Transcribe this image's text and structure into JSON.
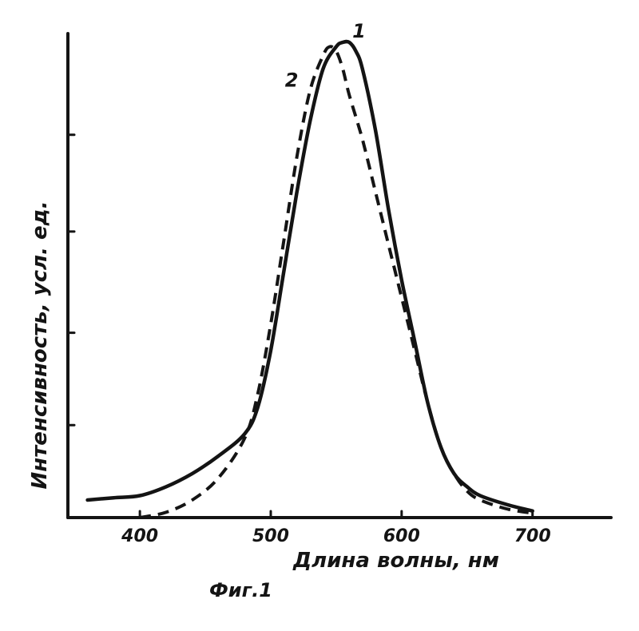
{
  "chart_data": {
    "type": "line",
    "xlabel": "Длина волны, нм",
    "ylabel": "Интенсивность, усл. ед.",
    "caption": "Фиг.1",
    "xlim": [
      345,
      760
    ],
    "ylim": [
      0,
      1.1
    ],
    "x_ticks": [
      400,
      500,
      600,
      700
    ],
    "x_tick_labels": [
      "400",
      "500",
      "600",
      "700"
    ],
    "y_ticks": [
      0.21,
      0.42,
      0.65,
      0.87
    ],
    "y_tick_labels": [],
    "series": [
      {
        "name": "1",
        "style": "solid",
        "x": [
          360,
          380,
          400,
          420,
          440,
          460,
          480,
          490,
          500,
          510,
          520,
          530,
          540,
          550,
          555,
          560,
          565,
          570,
          580,
          590,
          600,
          610,
          620,
          630,
          640,
          650,
          660,
          680,
          700
        ],
        "y": [
          0.04,
          0.045,
          0.05,
          0.07,
          0.1,
          0.14,
          0.19,
          0.25,
          0.38,
          0.56,
          0.74,
          0.9,
          1.02,
          1.07,
          1.08,
          1.08,
          1.06,
          1.02,
          0.88,
          0.7,
          0.54,
          0.4,
          0.26,
          0.16,
          0.1,
          0.07,
          0.05,
          0.03,
          0.015
        ]
      },
      {
        "name": "2",
        "style": "dashed",
        "x": [
          400,
          420,
          440,
          460,
          480,
          490,
          500,
          510,
          520,
          530,
          540,
          545,
          550,
          555,
          560,
          570,
          580,
          590,
          600,
          610,
          620,
          630,
          640,
          650,
          660,
          680,
          700
        ],
        "y": [
          0.0,
          0.012,
          0.04,
          0.09,
          0.18,
          0.28,
          0.44,
          0.63,
          0.82,
          0.97,
          1.05,
          1.07,
          1.06,
          1.02,
          0.96,
          0.86,
          0.74,
          0.62,
          0.5,
          0.38,
          0.26,
          0.16,
          0.1,
          0.06,
          0.04,
          0.02,
          0.01
        ]
      }
    ],
    "grid": false,
    "legend": "labels near curves"
  },
  "colors": {
    "ink": "#141414",
    "background": "#ffffff"
  }
}
